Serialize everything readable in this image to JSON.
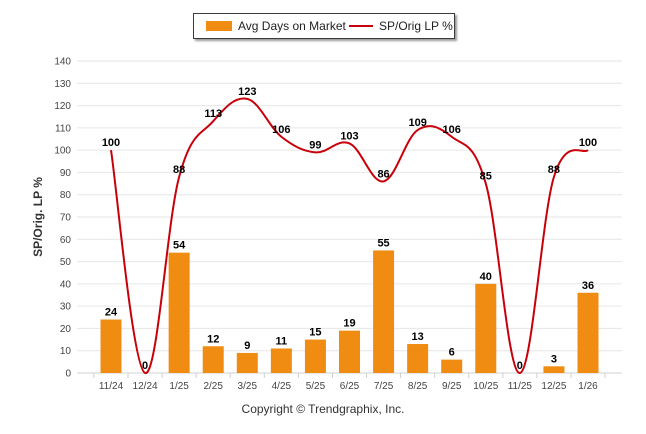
{
  "legend": {
    "bar_label": "Avg Days on Market",
    "line_label": "SP/Orig LP %"
  },
  "copyright": "Copyright © Trendgraphix, Inc.",
  "colors": {
    "bar": "#f08c12",
    "line": "#c8000a",
    "grid": "#e6e6e6"
  },
  "chart_data": {
    "type": "bar",
    "title": "",
    "xlabel": "",
    "ylabel": "SP/Orig. LP %",
    "ylim": [
      0,
      140
    ],
    "yticks": [
      0,
      10,
      20,
      30,
      40,
      50,
      60,
      70,
      80,
      90,
      100,
      110,
      120,
      130,
      140
    ],
    "grid": true,
    "legend_position": "top-center",
    "categories": [
      "11/24",
      "12/24",
      "1/25",
      "2/25",
      "3/25",
      "4/25",
      "5/25",
      "6/25",
      "7/25",
      "8/25",
      "9/25",
      "10/25",
      "11/25",
      "12/25",
      "1/26"
    ],
    "series": [
      {
        "name": "Avg Days on Market",
        "type": "bar",
        "values": [
          24,
          0,
          54,
          12,
          9,
          11,
          15,
          19,
          55,
          13,
          6,
          40,
          0,
          3,
          36
        ]
      },
      {
        "name": "SP/Orig LP %",
        "type": "line",
        "values": [
          100,
          0,
          88,
          113,
          123,
          106,
          99,
          103,
          86,
          109,
          106,
          85,
          0,
          88,
          100
        ]
      }
    ]
  }
}
